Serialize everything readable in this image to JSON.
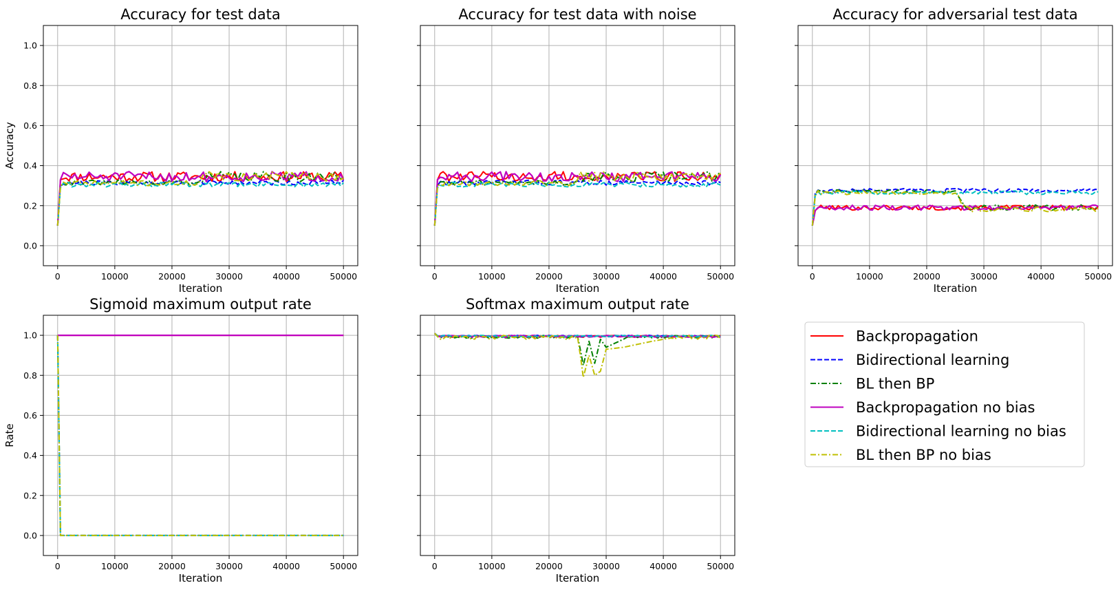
{
  "chart_data": [
    {
      "type": "line",
      "title": "Accuracy for test data",
      "xlabel": "Iteration",
      "ylabel": "Accuracy",
      "xlim": [
        -2500,
        52500
      ],
      "ylim": [
        -0.1,
        1.1
      ],
      "xticks": [
        0,
        10000,
        20000,
        30000,
        40000,
        50000
      ],
      "yticks": [
        "0.0",
        "0.2",
        "0.4",
        "0.6",
        "0.8",
        "1.0"
      ],
      "show_ytick_labels": true,
      "grid": true,
      "series": [
        {
          "name": "Backpropagation",
          "pattern": "bp_test"
        },
        {
          "name": "Bidirectional learning",
          "pattern": "bl_test"
        },
        {
          "name": "BL then BP",
          "pattern": "bl_test"
        },
        {
          "name": "Backpropagation no bias",
          "pattern": "bp_test"
        },
        {
          "name": "Bidirectional learning no bias",
          "pattern": "bl_test"
        },
        {
          "name": "BL then BP no bias",
          "pattern": "bl_test"
        }
      ]
    },
    {
      "type": "line",
      "title": "Accuracy for test data with noise",
      "xlabel": "Iteration",
      "ylabel": "",
      "xlim": [
        -2500,
        52500
      ],
      "ylim": [
        -0.1,
        1.1
      ],
      "xticks": [
        0,
        10000,
        20000,
        30000,
        40000,
        50000
      ],
      "yticks": [
        "0.0",
        "0.2",
        "0.4",
        "0.6",
        "0.8",
        "1.0"
      ],
      "show_ytick_labels": false,
      "grid": true
    },
    {
      "type": "line",
      "title": "Accuracy for adversarial test data",
      "xlabel": "Iteration",
      "ylabel": "",
      "xlim": [
        -2500,
        52500
      ],
      "ylim": [
        -0.1,
        1.1
      ],
      "xticks": [
        0,
        10000,
        20000,
        30000,
        40000,
        50000
      ],
      "yticks": [
        "0.0",
        "0.2",
        "0.4",
        "0.6",
        "0.8",
        "1.0"
      ],
      "show_ytick_labels": false,
      "grid": true,
      "notes_values": {
        "bp_level": 0.19,
        "bl_level": 0.27,
        "switch_iteration": 25000
      }
    },
    {
      "type": "line",
      "title": "Sigmoid maximum output rate",
      "xlabel": "Iteration",
      "ylabel": "Rate",
      "xlim": [
        -2500,
        52500
      ],
      "ylim": [
        -0.1,
        1.1
      ],
      "xticks": [
        0,
        10000,
        20000,
        30000,
        40000,
        50000
      ],
      "yticks": [
        "0.0",
        "0.2",
        "0.4",
        "0.6",
        "0.8",
        "1.0"
      ],
      "show_ytick_labels": true,
      "grid": true,
      "values_bp": {
        "x": [
          0,
          50000
        ],
        "y": [
          1.0,
          1.0
        ]
      },
      "values_bl": {
        "x": [
          0,
          500,
          50000
        ],
        "y": [
          1.0,
          0.0,
          0.0
        ]
      }
    },
    {
      "type": "line",
      "title": "Softmax maximum output rate",
      "xlabel": "Iteration",
      "ylabel": "",
      "xlim": [
        -2500,
        52500
      ],
      "ylim": [
        -0.1,
        1.1
      ],
      "xticks": [
        0,
        10000,
        20000,
        30000,
        40000,
        50000
      ],
      "yticks": [
        "0.0",
        "0.2",
        "0.4",
        "0.6",
        "0.8",
        "1.0"
      ],
      "show_ytick_labels": false,
      "grid": true,
      "dip_green": {
        "x": [
          25000,
          26000,
          27000,
          28000,
          29000,
          30000,
          33000
        ],
        "y": [
          1.0,
          0.85,
          0.97,
          0.86,
          0.98,
          0.94,
          0.98
        ]
      },
      "dip_yellow": {
        "x": [
          25000,
          26000,
          27000,
          28000,
          29000,
          30000,
          33000,
          38000,
          42000
        ],
        "y": [
          1.0,
          0.79,
          0.9,
          0.8,
          0.82,
          0.93,
          0.94,
          0.97,
          0.99
        ]
      }
    }
  ],
  "legend": {
    "placement": "right of bottom row",
    "items": [
      {
        "label": "Backpropagation",
        "color": "#ff0000",
        "dash": "solid"
      },
      {
        "label": "Bidirectional learning",
        "color": "#0000ff",
        "dash": "dashed"
      },
      {
        "label": "BL then BP",
        "color": "#008000",
        "dash": "dashdot"
      },
      {
        "label": "Backpropagation no bias",
        "color": "#bf00bf",
        "dash": "solid"
      },
      {
        "label": "Bidirectional learning no bias",
        "color": "#00bfbf",
        "dash": "dashed"
      },
      {
        "label": "BL then BP no bias",
        "color": "#bfbf00",
        "dash": "dashdot"
      }
    ]
  }
}
